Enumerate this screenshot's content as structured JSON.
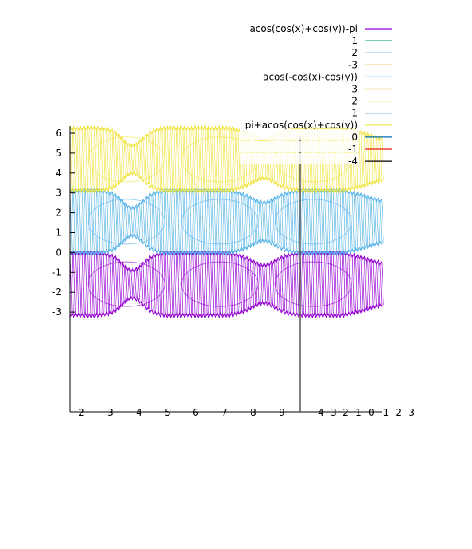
{
  "chart_data": {
    "type": "line",
    "title": "",
    "xlabel": "",
    "ylabel": "",
    "ylim": [
      -3.6,
      6.25
    ],
    "y_ticks": [
      "6",
      "5",
      "4",
      "3",
      "2",
      "1",
      "0",
      "-1",
      "-2",
      "-3"
    ],
    "x_ticks": [
      "2",
      "3",
      "4",
      "5",
      "6",
      "7",
      "8",
      "9",
      "4",
      "3",
      "2",
      "1",
      "0",
      "-1",
      "-2",
      "-3"
    ],
    "grid": false,
    "legend_position": "top-right",
    "series": [
      {
        "name": "acos(cos(x)+cos(y))-pi",
        "color": "#9400d3",
        "band": [
          -3.14,
          0
        ]
      },
      {
        "name": "-1",
        "color": "#009e73"
      },
      {
        "name": "-2",
        "color": "#56b4e9"
      },
      {
        "name": "-3",
        "color": "#e69f00"
      },
      {
        "name": "acos(-cos(x)-cos(y))",
        "color": "#56b4e9",
        "band": [
          0,
          3.14
        ]
      },
      {
        "name": "3",
        "color": "#e69f00"
      },
      {
        "name": "2",
        "color": "#f0e442"
      },
      {
        "name": "1",
        "color": "#0072b2"
      },
      {
        "name": "pi+acos(cos(x)+cos(y))",
        "color": "#f0e442",
        "band": [
          3.14,
          6.28
        ]
      },
      {
        "name": "0",
        "color": "#0072b2"
      },
      {
        "name": "-1",
        "color": "#e51e10"
      },
      {
        "name": "-4",
        "color": "#000000"
      }
    ]
  }
}
